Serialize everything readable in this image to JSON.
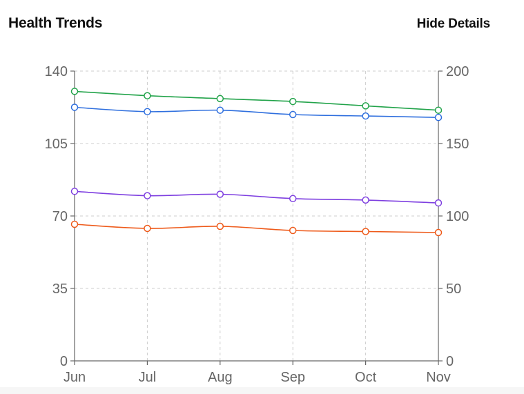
{
  "header": {
    "title": "Health Trends",
    "toggle_label": "Hide Details"
  },
  "chart_data": {
    "type": "line",
    "categories": [
      "Jun",
      "Jul",
      "Aug",
      "Sep",
      "Oct",
      "Nov"
    ],
    "left_axis": {
      "ticks": [
        0,
        35,
        70,
        105,
        140
      ],
      "ylim": [
        0,
        140
      ]
    },
    "right_axis": {
      "ticks": [
        0,
        50,
        100,
        150,
        200
      ],
      "ylim": [
        0,
        200
      ]
    },
    "grid": true,
    "legend": "none",
    "series": [
      {
        "axis": "right",
        "color": "#22a34a",
        "values": [
          186,
          183,
          181,
          179,
          176,
          173
        ]
      },
      {
        "axis": "right",
        "color": "#2f6fde",
        "values": [
          175,
          172,
          173,
          170,
          169,
          168
        ]
      },
      {
        "axis": "right",
        "color": "#7e3fe0",
        "values": [
          117,
          114,
          115,
          112,
          111,
          109
        ]
      },
      {
        "axis": "left",
        "color": "#ee5a1a",
        "values": [
          66,
          64,
          65,
          63,
          62.5,
          62
        ]
      }
    ]
  }
}
